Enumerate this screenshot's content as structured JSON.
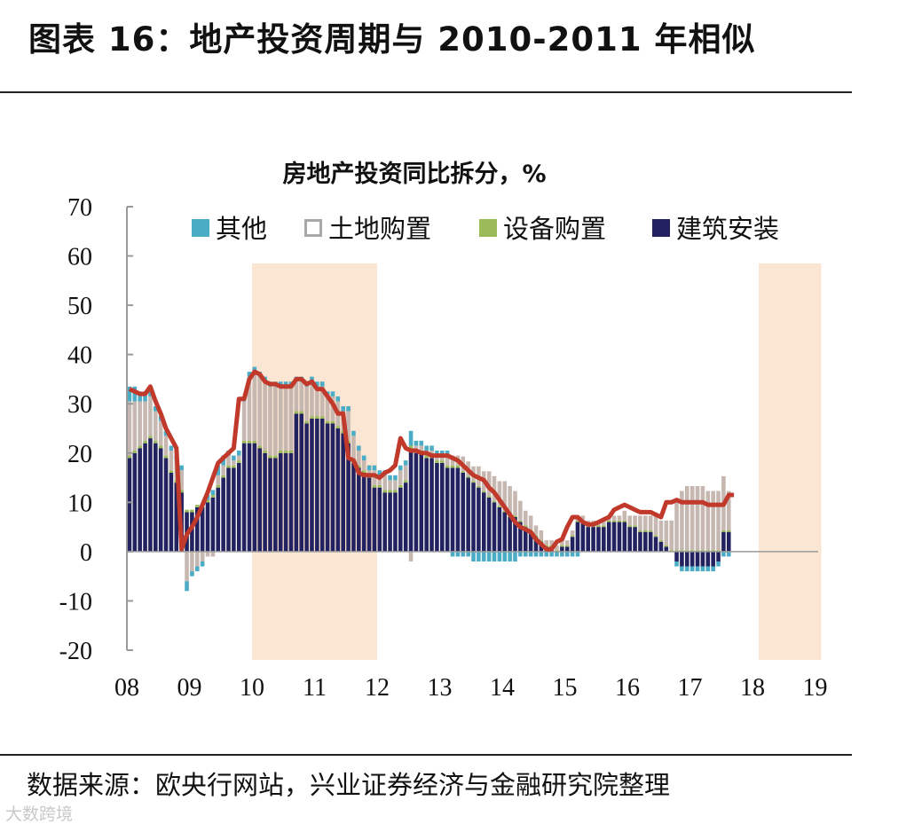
{
  "header": {
    "title": "图表 16：地产投资周期与 2010-2011 年相似"
  },
  "footer": {
    "source": "数据来源：欧央行网站，兴业证券经济与金融研究院整理",
    "watermark": "大数跨境"
  },
  "colors": {
    "other": "#4bacc6",
    "land": "#c6b8b0",
    "equipment": "#9bbb59",
    "construction": "#232260",
    "total_line": "#c0392b",
    "highlight": "#fbe5d3"
  },
  "chart_data": {
    "type": "bar",
    "title": "房地产投资同比拆分，%",
    "xlabel": "",
    "ylabel": "",
    "ylim": [
      -20,
      70
    ],
    "yticks": [
      "70",
      "60",
      "50",
      "40",
      "30",
      "20",
      "10",
      "0",
      "-10",
      "-20"
    ],
    "xticks": [
      "08",
      "09",
      "10",
      "11",
      "12",
      "13",
      "14",
      "15",
      "16",
      "17",
      "18",
      "19"
    ],
    "x_start": 2008.0,
    "x_step": 0.0833,
    "highlight_ranges": [
      [
        2010.0,
        2012.0
      ],
      [
        2018.1,
        2019.1
      ]
    ],
    "legend": [
      "其他",
      "土地购置",
      "设备购置",
      "建筑安装"
    ],
    "series": [
      {
        "name": "建筑安装",
        "values": [
          19,
          20,
          21,
          22,
          23,
          22,
          21,
          19,
          16,
          14,
          12,
          8,
          8,
          9,
          9,
          10,
          11,
          13,
          15,
          17,
          17,
          18,
          22,
          22,
          22,
          21,
          20,
          19,
          19,
          20,
          20,
          20,
          28,
          28,
          26,
          27,
          27,
          27,
          26,
          26,
          25,
          24,
          22,
          18,
          17,
          16,
          15,
          13,
          13,
          12,
          12,
          12,
          13,
          14,
          21,
          20,
          20,
          19,
          19,
          18,
          18,
          17,
          17,
          17,
          16,
          15,
          14,
          13,
          12,
          11,
          10,
          9,
          8,
          7,
          7,
          6,
          5,
          4,
          3,
          2,
          1,
          1,
          0,
          1,
          1,
          3,
          6,
          6,
          5,
          5,
          5,
          5,
          6,
          6,
          6,
          6,
          5,
          5,
          4,
          4,
          4,
          3,
          2,
          1,
          0,
          -2,
          -3,
          -3,
          -3,
          -3,
          -3,
          -3,
          -3,
          -2,
          4,
          4
        ]
      },
      {
        "name": "土地购置",
        "values": [
          11,
          10,
          9,
          8,
          8,
          6,
          5,
          4,
          4,
          4,
          4,
          -6,
          -4,
          -3,
          -2,
          -1,
          -1,
          2,
          2,
          2,
          1,
          1,
          8,
          13,
          14,
          14,
          14,
          14,
          14,
          13,
          13,
          13,
          6,
          6,
          7,
          7,
          6,
          6,
          5,
          5,
          5,
          4,
          6,
          5,
          3,
          2,
          1,
          3,
          2,
          3,
          2,
          2,
          3,
          3,
          -2,
          1,
          1,
          1,
          1,
          1,
          1,
          2,
          2,
          2,
          3,
          3,
          3,
          4,
          4,
          5,
          5,
          5,
          6,
          6,
          5,
          4,
          3,
          3,
          2,
          2,
          1,
          1,
          1,
          1,
          1,
          1,
          1,
          1,
          1,
          1,
          1,
          1,
          1,
          1,
          1,
          2,
          2,
          2,
          3,
          3,
          3,
          4,
          4,
          5,
          6,
          10,
          12,
          13,
          13,
          13,
          13,
          12,
          12,
          12,
          11,
          8,
          8
        ]
      },
      {
        "name": "设备购置",
        "values": [
          0.5,
          0.5,
          0.5,
          0.5,
          0.5,
          0.5,
          0.5,
          0.5,
          0.5,
          0.5,
          0.5,
          0.5,
          0.5,
          0.5,
          0.5,
          0.5,
          0.5,
          0.5,
          0.5,
          0.5,
          0.5,
          0.5,
          0.5,
          0.5,
          0.5,
          0.5,
          0.5,
          0.5,
          0.5,
          0.5,
          0.5,
          0.5,
          0.5,
          0.5,
          0.5,
          0.5,
          0.5,
          0.5,
          0.5,
          0.5,
          0.5,
          0.5,
          0.5,
          0.5,
          0.5,
          0.5,
          0.5,
          0.5,
          0.5,
          0.5,
          0.5,
          0.5,
          0.5,
          0.5,
          0.5,
          0.5,
          0.5,
          0.5,
          0.5,
          0.5,
          0.5,
          0.5,
          0.5,
          0.5,
          0.3,
          0.3,
          0.3,
          0.3,
          0.3,
          0.3,
          0.3,
          0.3,
          0.3,
          0.3,
          0.3,
          0.3,
          0.3,
          0.3,
          0.3,
          0.3,
          0.3,
          0.3,
          0.3,
          0.3,
          0.3,
          0.3,
          0.3,
          0.3,
          0.3,
          0.3,
          0.3,
          0.3,
          0.3,
          0.3,
          0.3,
          0.3,
          0.3,
          0.3,
          0.3,
          0.3,
          0.3,
          0.3,
          0.3,
          0.3,
          0.3,
          0.3,
          0.3,
          0.3,
          0.3,
          0.3,
          0.3,
          0.3,
          0.3,
          0.3,
          0.3,
          0.3
        ]
      },
      {
        "name": "其他",
        "values": [
          3,
          3,
          2,
          2,
          2,
          1,
          1,
          1,
          1,
          1,
          1,
          -2,
          -1,
          -1,
          -1,
          1,
          1,
          2,
          2,
          1,
          1,
          1,
          1,
          1,
          1,
          1,
          1,
          1,
          1,
          1,
          1,
          1,
          1,
          1,
          1,
          1,
          1,
          1,
          1,
          1,
          1,
          1,
          1,
          1,
          1,
          1,
          1,
          1,
          1,
          1,
          1,
          1,
          1,
          1,
          3,
          1,
          1,
          1,
          1,
          1,
          1,
          1,
          -1,
          -1,
          -1,
          -1,
          -2,
          -2,
          -2,
          -2,
          -2,
          -2,
          -2,
          -2,
          -2,
          -1,
          -1,
          -1,
          -1,
          -1,
          -1,
          -1,
          -1,
          -1,
          -1,
          -1,
          -1,
          0,
          0,
          0,
          0,
          0,
          0,
          0,
          0,
          0,
          0,
          0,
          0,
          0,
          0,
          0,
          0,
          0,
          0,
          -1,
          -1,
          -1,
          -1,
          -1,
          -1,
          -1,
          -1,
          -1,
          -1,
          -1,
          -1,
          -1
        ]
      },
      {
        "name": "房地产投资同比",
        "values": [
          33,
          32.5,
          32,
          32,
          33.5,
          30.5,
          28,
          25,
          23,
          21,
          0.5,
          3.5,
          5,
          7,
          9.5,
          12,
          15,
          18,
          19,
          20,
          21,
          31,
          31,
          35,
          36.5,
          36,
          34.5,
          34,
          34,
          33.5,
          33.5,
          33.5,
          35,
          35,
          34,
          34.5,
          33,
          33,
          31.5,
          30,
          28,
          28,
          19,
          18.5,
          16,
          15.5,
          15.5,
          15.5,
          15,
          16,
          16.5,
          17.5,
          23,
          21,
          20.5,
          20.5,
          20,
          20,
          19.5,
          19.5,
          19.5,
          19.5,
          19,
          18.5,
          17.5,
          16.5,
          15.5,
          15,
          14.5,
          13,
          12,
          10.5,
          9,
          7.5,
          6,
          5,
          4.5,
          4,
          2.5,
          1.5,
          0.5,
          0.5,
          2,
          2.5,
          5,
          7,
          7,
          6,
          5.5,
          5.5,
          6,
          6.5,
          7,
          8.5,
          9,
          9.5,
          9,
          8.5,
          8,
          8,
          8,
          7.5,
          7,
          10,
          10,
          10.5,
          10,
          10,
          10,
          10,
          10,
          9.5,
          9.5,
          9.5,
          9.5,
          11.5,
          11.5
        ]
      }
    ]
  }
}
